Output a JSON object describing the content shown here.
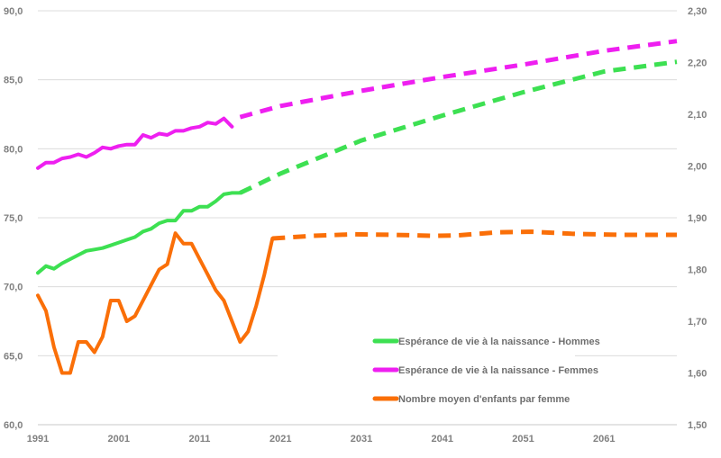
{
  "chart_data": {
    "type": "line",
    "x_axis": {
      "min": 1991,
      "max": 2070,
      "ticks": [
        1991,
        2001,
        2011,
        2021,
        2031,
        2041,
        2051,
        2061
      ],
      "tick_labels": [
        "1991",
        "2001",
        "2011",
        "2021",
        "2031",
        "2041",
        "2051",
        "2061"
      ]
    },
    "y_left": {
      "min": 60,
      "max": 90,
      "ticks": [
        60,
        65,
        70,
        75,
        80,
        85,
        90
      ],
      "tick_labels": [
        "60,0",
        "65,0",
        "70,0",
        "75,0",
        "80,0",
        "85,0",
        "90,0"
      ]
    },
    "y_right": {
      "min": 1.5,
      "max": 2.3,
      "ticks": [
        1.5,
        1.6,
        1.7,
        1.8,
        1.9,
        2.0,
        2.1,
        2.2,
        2.3
      ],
      "tick_labels": [
        "1,50",
        "1,60",
        "1,70",
        "1,80",
        "1,90",
        "2,00",
        "2,10",
        "2,20",
        "2,30"
      ]
    },
    "grid": "horizontal",
    "legend_position": "bottom-right",
    "series": [
      {
        "name": "Espérance de vie à la naissance - Hommes",
        "color": "#3de052",
        "axis": "left",
        "observed": [
          [
            1991,
            71.0
          ],
          [
            1992,
            71.5
          ],
          [
            1993,
            71.3
          ],
          [
            1994,
            71.7
          ],
          [
            1995,
            72.0
          ],
          [
            1996,
            72.3
          ],
          [
            1997,
            72.6
          ],
          [
            1998,
            72.7
          ],
          [
            1999,
            72.8
          ],
          [
            2000,
            73.0
          ],
          [
            2001,
            73.2
          ],
          [
            2002,
            73.4
          ],
          [
            2003,
            73.6
          ],
          [
            2004,
            74.0
          ],
          [
            2005,
            74.2
          ],
          [
            2006,
            74.6
          ],
          [
            2007,
            74.8
          ],
          [
            2008,
            74.8
          ],
          [
            2009,
            75.5
          ],
          [
            2010,
            75.5
          ],
          [
            2011,
            75.8
          ],
          [
            2012,
            75.8
          ],
          [
            2013,
            76.2
          ],
          [
            2014,
            76.7
          ],
          [
            2015,
            76.8
          ],
          [
            2016,
            76.8
          ]
        ],
        "projected": [
          [
            2016,
            76.8
          ],
          [
            2021,
            78.2
          ],
          [
            2031,
            80.6
          ],
          [
            2041,
            82.4
          ],
          [
            2051,
            84.1
          ],
          [
            2061,
            85.6
          ],
          [
            2070,
            86.3
          ]
        ]
      },
      {
        "name": "Espérance de vie à la naissance - Femmes",
        "color": "#ee1ff0",
        "axis": "left",
        "observed": [
          [
            1991,
            78.6
          ],
          [
            1992,
            79.0
          ],
          [
            1993,
            79.0
          ],
          [
            1994,
            79.3
          ],
          [
            1995,
            79.4
          ],
          [
            1996,
            79.6
          ],
          [
            1997,
            79.4
          ],
          [
            1998,
            79.7
          ],
          [
            1999,
            80.1
          ],
          [
            2000,
            80.0
          ],
          [
            2001,
            80.2
          ],
          [
            2002,
            80.3
          ],
          [
            2003,
            80.3
          ],
          [
            2004,
            81.0
          ],
          [
            2005,
            80.8
          ],
          [
            2006,
            81.1
          ],
          [
            2007,
            81.0
          ],
          [
            2008,
            81.3
          ],
          [
            2009,
            81.3
          ],
          [
            2010,
            81.5
          ],
          [
            2011,
            81.6
          ],
          [
            2012,
            81.9
          ],
          [
            2013,
            81.8
          ],
          [
            2014,
            82.2
          ],
          [
            2015,
            81.6
          ]
        ],
        "projected": [
          [
            2016,
            82.3
          ],
          [
            2021,
            83.1
          ],
          [
            2031,
            84.2
          ],
          [
            2041,
            85.2
          ],
          [
            2051,
            86.1
          ],
          [
            2061,
            87.1
          ],
          [
            2070,
            87.8
          ]
        ]
      },
      {
        "name": "Nombre moyen d'enfants par femme",
        "color": "#fa6f08",
        "axis": "right",
        "observed": [
          [
            1991,
            1.75
          ],
          [
            1992,
            1.72
          ],
          [
            1993,
            1.65
          ],
          [
            1994,
            1.6
          ],
          [
            1995,
            1.6
          ],
          [
            1996,
            1.66
          ],
          [
            1997,
            1.66
          ],
          [
            1998,
            1.64
          ],
          [
            1999,
            1.67
          ],
          [
            2000,
            1.74
          ],
          [
            2001,
            1.74
          ],
          [
            2002,
            1.7
          ],
          [
            2003,
            1.71
          ],
          [
            2004,
            1.74
          ],
          [
            2005,
            1.77
          ],
          [
            2006,
            1.8
          ],
          [
            2007,
            1.81
          ],
          [
            2008,
            1.87
          ],
          [
            2009,
            1.85
          ],
          [
            2010,
            1.85
          ],
          [
            2011,
            1.82
          ],
          [
            2012,
            1.79
          ],
          [
            2013,
            1.76
          ],
          [
            2014,
            1.74
          ],
          [
            2015,
            1.7
          ],
          [
            2016,
            1.66
          ],
          [
            2017,
            1.68
          ],
          [
            2018,
            1.73
          ],
          [
            2019,
            1.79
          ],
          [
            2020,
            1.86
          ]
        ],
        "projected": [
          [
            2020,
            1.86
          ],
          [
            2025,
            1.865
          ],
          [
            2030,
            1.868
          ],
          [
            2035,
            1.867
          ],
          [
            2040,
            1.865
          ],
          [
            2043,
            1.866
          ],
          [
            2048,
            1.872
          ],
          [
            2052,
            1.873
          ],
          [
            2057,
            1.869
          ],
          [
            2063,
            1.867
          ],
          [
            2070,
            1.867
          ]
        ]
      }
    ]
  }
}
